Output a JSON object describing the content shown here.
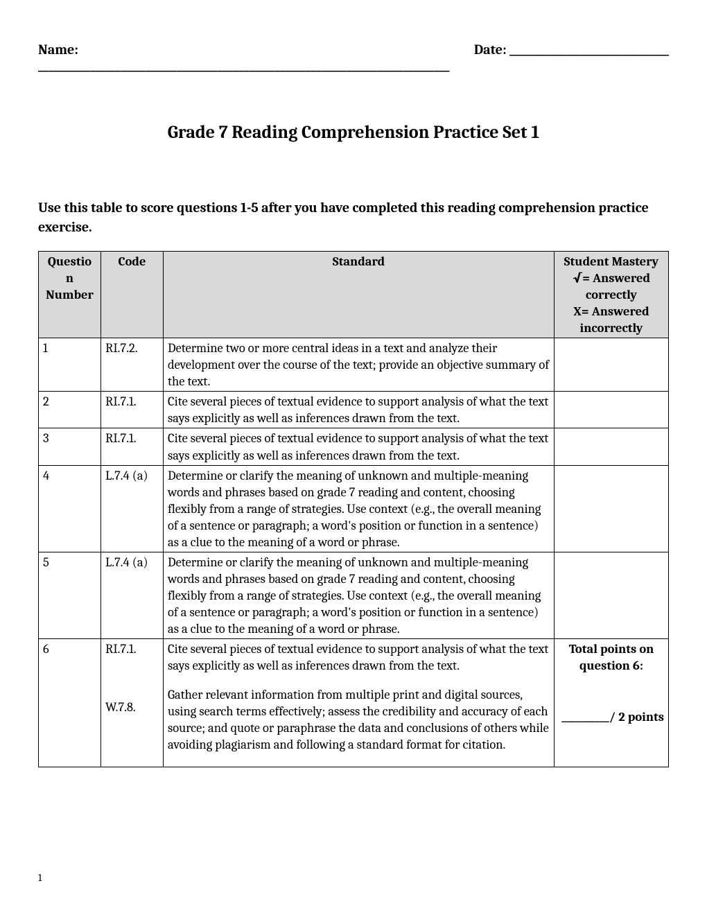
{
  "header": {
    "name_label": "Name: ________________________________________________________________________________",
    "date_label": "Date: _______________________________"
  },
  "title": "Grade 7 Reading Comprehension Practice Set 1",
  "instructions": "Use this table to score questions 1-5 after you have completed this reading comprehension practice exercise.",
  "table": {
    "columns": {
      "qnum": "Questio\nn Number",
      "code": "Code",
      "standard": "Standard",
      "mastery_title": "Student Mastery",
      "mastery_correct": "√= Answered correctly",
      "mastery_incorrect": "X= Answered incorrectly"
    },
    "rows": [
      {
        "num": "1",
        "code": "RI.7.2.",
        "standard": "Determine two or more central ideas in a text and analyze their development over the course of the text; provide an objective summary of the text.",
        "mastery": ""
      },
      {
        "num": "2",
        "code": "RI.7.1.",
        "standard": "Cite several pieces of textual evidence to support analysis of what the text says explicitly as well as inferences drawn from the text.",
        "mastery": ""
      },
      {
        "num": "3",
        "code": "RI.7.1.",
        "standard": "Cite several pieces of textual evidence to support analysis of what the text says explicitly as well as inferences drawn from the text.",
        "mastery": ""
      },
      {
        "num": "4",
        "code": "L.7.4 (a)",
        "standard": "Determine or clarify the meaning of unknown and multiple-meaning words and phrases based on grade 7 reading and content, choosing flexibly from a range of strategies. Use context (e.g., the overall meaning of a sentence or paragraph; a word's position or function in a sentence) as a clue to the meaning of a word or phrase.",
        "mastery": ""
      },
      {
        "num": "5",
        "code": "L.7.4 (a)",
        "standard": "Determine or clarify the meaning of unknown and multiple-meaning words and phrases based on grade 7 reading and content, choosing flexibly from a range of strategies. Use context (e.g., the overall meaning of a sentence or paragraph; a word's position or function in a sentence) as a clue to the meaning of a word or phrase.",
        "mastery": ""
      }
    ],
    "row6": {
      "num": "6",
      "code1": "RI.7.1.",
      "standard1": "Cite several pieces of textual evidence to support analysis of what the text says explicitly as well as inferences drawn from the text.",
      "code2": "W.7.8.",
      "standard2": "Gather relevant information from multiple print and digital sources, using search terms effectively; assess the credibility and accuracy of each source; and quote or paraphrase the data and conclusions of others while avoiding plagiarism and following a standard format for citation.",
      "mastery_label": "Total points on question 6:",
      "points_line": "__________/ 2 points"
    }
  },
  "page_number": "1",
  "styling": {
    "background_color": "#ffffff",
    "text_color": "#000000",
    "header_bg": "#d9d9d9",
    "border_color": "#000000",
    "body_fontsize": 18.5,
    "title_fontsize": 26,
    "label_fontsize": 20,
    "font_family": "Cambria, Georgia, serif"
  }
}
